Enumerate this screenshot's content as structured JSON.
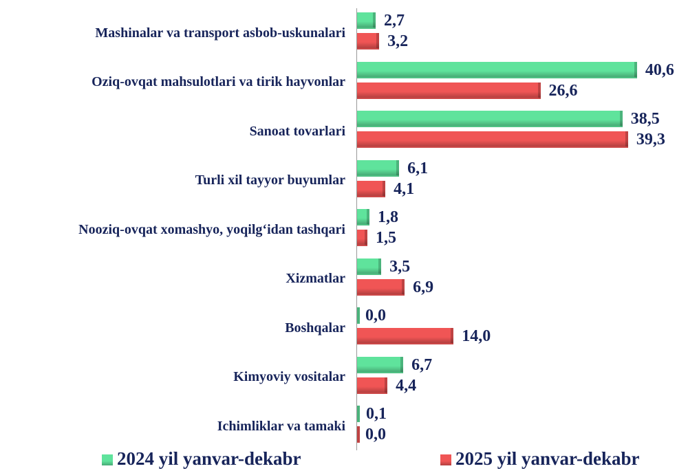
{
  "chart_data": {
    "type": "bar",
    "orientation": "horizontal",
    "categories": [
      "Mashinalar va transport asbob-uskunalari",
      "Oziq-ovqat mahsulotlari va tirik hayvonlar",
      "Sanoat tovarlari",
      "Turli xil tayyor buyumlar",
      "Nooziq-ovqat xomashyo, yoqilg‘idan tashqari",
      "Xizmatlar",
      "Boshqalar",
      "Kimyoviy vositalar",
      "Ichimliklar va tamaki"
    ],
    "series": [
      {
        "name": "2024 yil yanvar-dekabr",
        "color": "#5fe39c",
        "values": [
          2.7,
          40.6,
          38.5,
          6.1,
          1.8,
          3.5,
          0.0,
          6.7,
          0.1
        ],
        "value_labels": [
          "2,7",
          "40,6",
          "38,5",
          "6,1",
          "1,8",
          "3,5",
          "0,0",
          "6,7",
          "0,1"
        ]
      },
      {
        "name": "2025 yil yanvar-dekabr",
        "color": "#f05555",
        "values": [
          3.2,
          26.6,
          39.3,
          4.1,
          1.5,
          6.9,
          14.0,
          4.4,
          0.0
        ],
        "value_labels": [
          "3,2",
          "26,6",
          "39,3",
          "4,1",
          "1,5",
          "6,9",
          "14,0",
          "4,4",
          "0,0"
        ]
      }
    ],
    "xlim": [
      0,
      48
    ],
    "legend": "bottom"
  }
}
